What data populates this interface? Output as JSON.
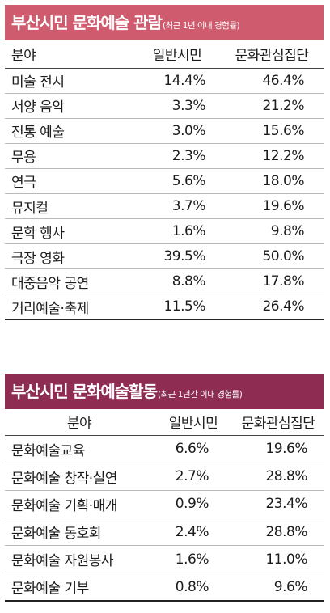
{
  "chart_data": [
    {
      "type": "table",
      "title": "부산시민 문화예술 관람",
      "subtitle": "(최근 1년 이내 경험률)",
      "columns": [
        "분야",
        "일반시민",
        "문화관심집단"
      ],
      "header_color": "#cf5c6e",
      "rows": [
        {
          "label": "미술 전시",
          "general": "14.4%",
          "interest": "46.4%"
        },
        {
          "label": "서양 음악",
          "general": "3.3%",
          "interest": "21.2%"
        },
        {
          "label": "전통 예술",
          "general": "3.0%",
          "interest": "15.6%"
        },
        {
          "label": "무용",
          "general": "2.3%",
          "interest": "12.2%"
        },
        {
          "label": "연극",
          "general": "5.6%",
          "interest": "18.0%"
        },
        {
          "label": "뮤지컬",
          "general": "3.7%",
          "interest": "19.6%"
        },
        {
          "label": "문학 행사",
          "general": "1.6%",
          "interest": "9.8%"
        },
        {
          "label": "극장 영화",
          "general": "39.5%",
          "interest": "50.0%"
        },
        {
          "label": "대중음악 공연",
          "general": "8.8%",
          "interest": "17.8%"
        },
        {
          "label": "거리예술·축제",
          "general": "11.5%",
          "interest": "26.4%"
        }
      ]
    },
    {
      "type": "table",
      "title": "부산시민 문화예술활동",
      "subtitle": "(최근 1년간 이내 경험률)",
      "columns": [
        "분야",
        "일반시민",
        "문화관심집단"
      ],
      "header_color": "#8f2c52",
      "rows": [
        {
          "label": "문화예술교육",
          "general": "6.6%",
          "interest": "19.6%"
        },
        {
          "label": "문화예술 창작·실연",
          "general": "2.7%",
          "interest": "28.8%"
        },
        {
          "label": "문화예술 기획·매개",
          "general": "0.9%",
          "interest": "23.4%"
        },
        {
          "label": "문화예술 동호회",
          "general": "2.4%",
          "interest": "28.8%"
        },
        {
          "label": "문화예술 자원봉사",
          "general": "1.6%",
          "interest": "11.0%"
        },
        {
          "label": "문화예술 기부",
          "general": "0.8%",
          "interest": "9.6%"
        }
      ]
    }
  ]
}
